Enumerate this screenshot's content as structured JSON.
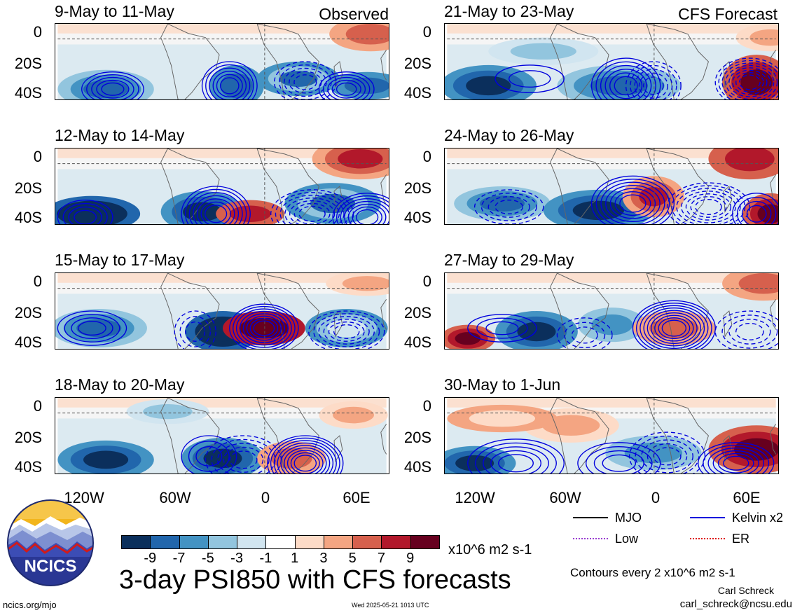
{
  "panels": {
    "left": [
      {
        "title": "9-May to 11-May",
        "tag": "Observed"
      },
      {
        "title": "12-May to 14-May",
        "tag": ""
      },
      {
        "title": "15-May to 17-May",
        "tag": ""
      },
      {
        "title": "18-May to 20-May",
        "tag": ""
      }
    ],
    "right": [
      {
        "title": "21-May to 23-May",
        "tag": "CFS Forecast"
      },
      {
        "title": "24-May to 26-May",
        "tag": ""
      },
      {
        "title": "27-May to 29-May",
        "tag": ""
      },
      {
        "title": "30-May to 1-Jun",
        "tag": ""
      }
    ]
  },
  "axes": {
    "lat_labels": [
      "0",
      "20S",
      "40S"
    ],
    "lon_labels": [
      "120W",
      "60W",
      "0",
      "60E"
    ]
  },
  "colorbar": {
    "labels": [
      "-9",
      "-7",
      "-5",
      "-3",
      "-1",
      "1",
      "3",
      "5",
      "7",
      "9"
    ],
    "units": "x10^6 m2 s-1",
    "colors": [
      "#0b2f5c",
      "#2166ac",
      "#4393c3",
      "#92c5de",
      "#d1e5f0",
      "#ffffff",
      "#fddbc7",
      "#f4a582",
      "#d6604d",
      "#b2182b",
      "#67001f"
    ]
  },
  "main_title": "3-day PSI850 with CFS forecasts",
  "legend": {
    "mjo": "MJO",
    "kelvin": "Kelvin x2",
    "low": "Low",
    "er": "ER",
    "colors": {
      "mjo": "#000000",
      "kelvin": "#0000dd",
      "low": "#9a3fd1",
      "er": "#dd0000"
    }
  },
  "contour_note": "Contours every 2 x10^6 m2 s-1",
  "author": "Carl Schreck",
  "email": "carl_schreck@ncsu.edu",
  "website": "ncics.org/mjo",
  "timestamp": "Wed 2025-05-21 1013 UTC",
  "logo_text": "NCICS"
}
